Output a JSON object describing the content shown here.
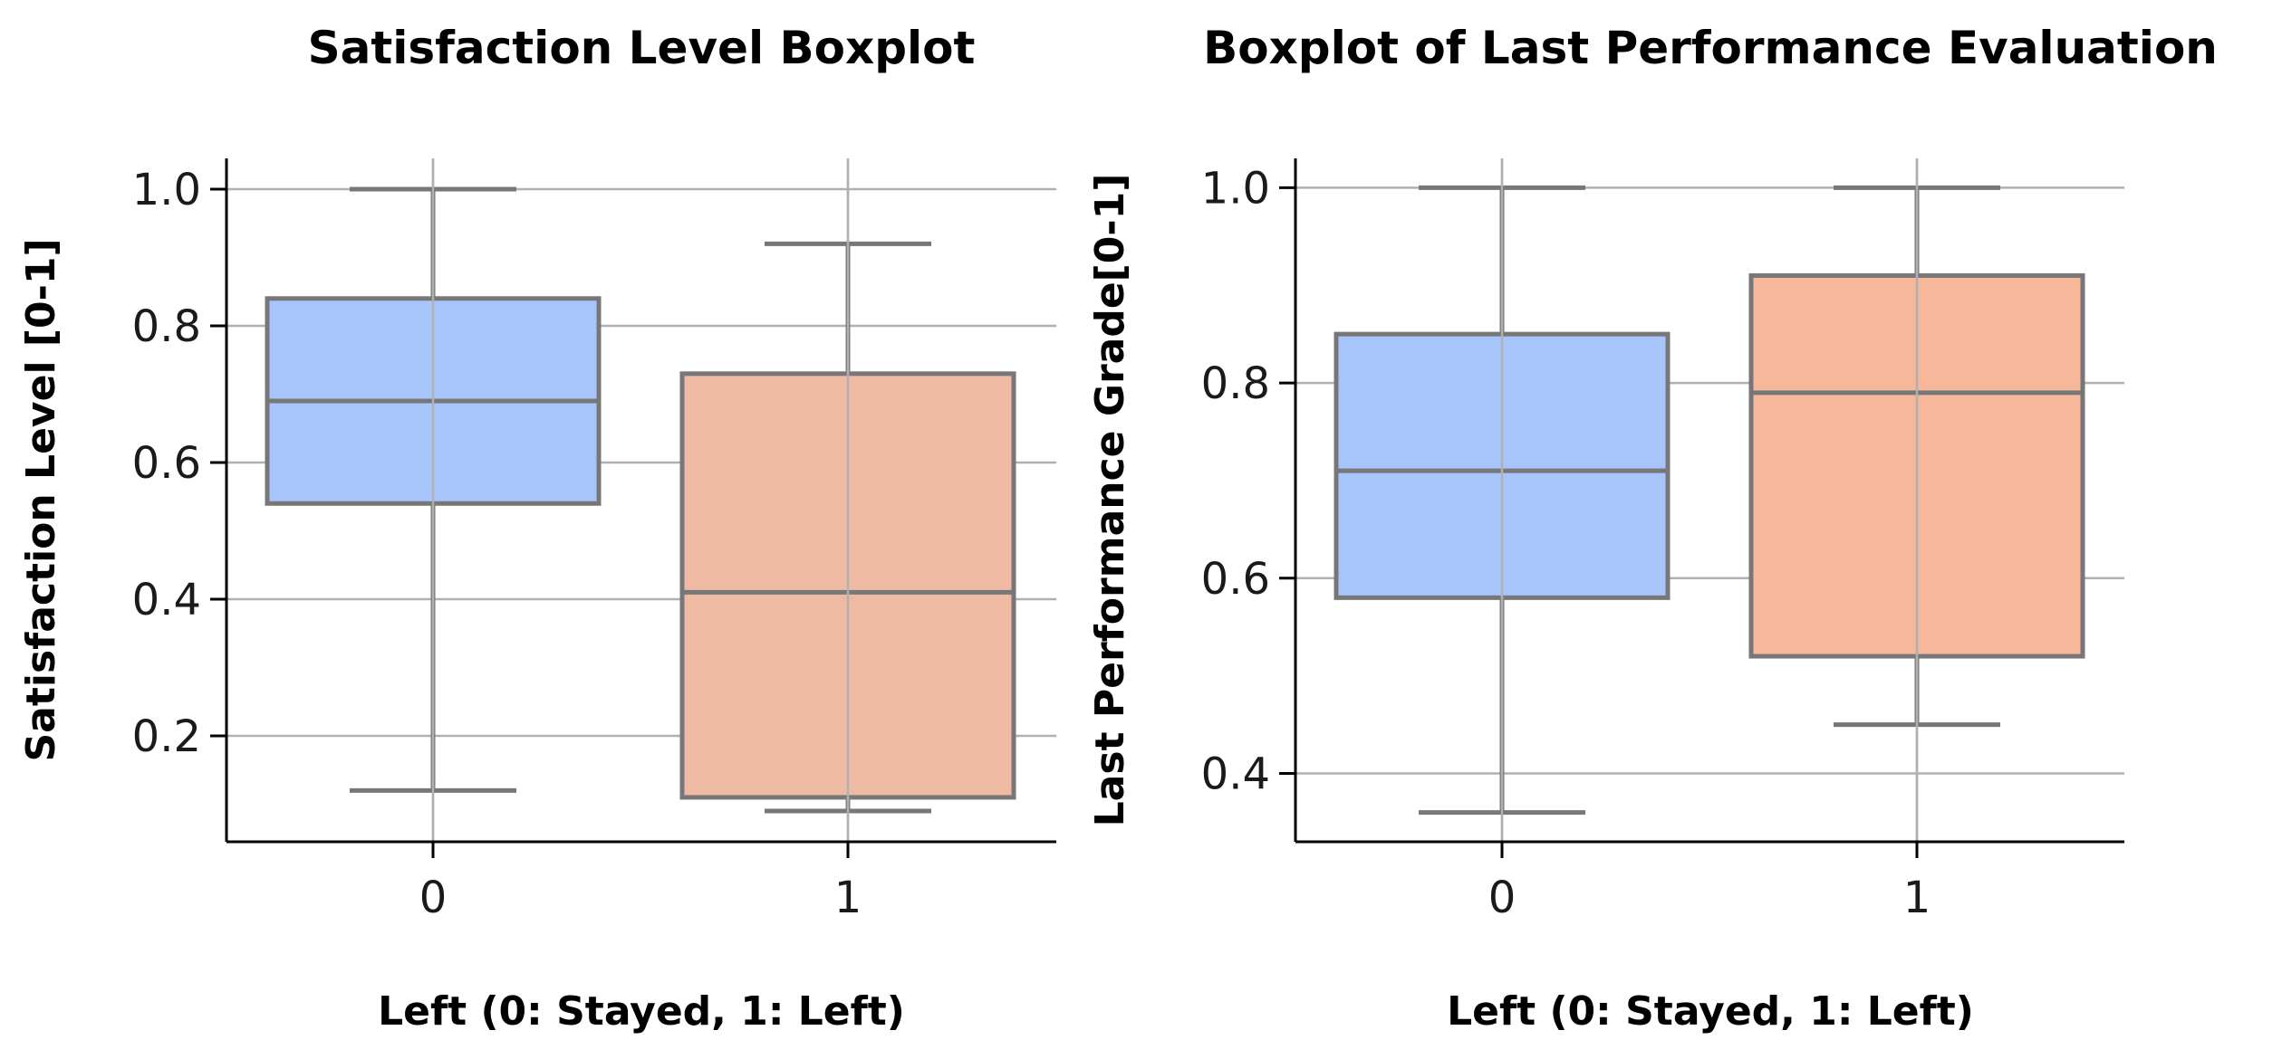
{
  "chart_data": [
    {
      "type": "box",
      "title": "Satisfaction Level Boxplot",
      "xlabel": "Left (0: Stayed, 1: Left)",
      "ylabel": "Satisfaction Level [0-1]",
      "categories": [
        "0",
        "1"
      ],
      "ylim": [
        0.045,
        1.045
      ],
      "yticks": [
        "0.2",
        "0.4",
        "0.6",
        "0.8",
        "1.0"
      ],
      "grid": true,
      "boxes": [
        {
          "category": "0",
          "whisker_low": 0.12,
          "q1": 0.54,
          "median": 0.69,
          "q3": 0.84,
          "whisker_high": 1.0,
          "color": "#a7c5fb"
        },
        {
          "category": "1",
          "whisker_low": 0.09,
          "q1": 0.11,
          "median": 0.41,
          "q3": 0.73,
          "whisker_high": 0.92,
          "color": "#eebaa4"
        }
      ]
    },
    {
      "type": "box",
      "title": "Boxplot of Last Performance Evaluation",
      "xlabel": "Left (0: Stayed, 1: Left)",
      "ylabel": "Last Performance Grade[0-1]",
      "categories": [
        "0",
        "1"
      ],
      "ylim": [
        0.33,
        1.03
      ],
      "yticks": [
        "0.4",
        "0.6",
        "0.8",
        "1.0"
      ],
      "grid": true,
      "boxes": [
        {
          "category": "0",
          "whisker_low": 0.36,
          "q1": 0.58,
          "median": 0.71,
          "q3": 0.85,
          "whisker_high": 1.0,
          "color": "#a7c5fb"
        },
        {
          "category": "1",
          "whisker_low": 0.45,
          "q1": 0.52,
          "median": 0.79,
          "q3": 0.91,
          "whisker_high": 1.0,
          "color": "#f6b79a"
        }
      ]
    }
  ]
}
